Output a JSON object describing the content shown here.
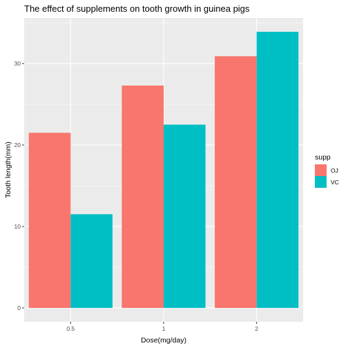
{
  "chart_data": {
    "type": "bar",
    "title": "The effect of supplements on tooth growth in guinea pigs",
    "xlabel": "Dose(mg/day)",
    "ylabel": "Tooth length(mm)",
    "categories": [
      "0.5",
      "1",
      "2"
    ],
    "series": [
      {
        "name": "OJ",
        "values": [
          21.5,
          27.3,
          30.9
        ],
        "color": "#F8766D"
      },
      {
        "name": "VC",
        "values": [
          11.5,
          22.5,
          33.9
        ],
        "color": "#00BFC4"
      }
    ],
    "ylim": [
      -1.7,
      35.6
    ],
    "yticks": [
      0,
      10,
      20,
      30
    ],
    "grid": true,
    "panel_background": "#EBEBEB",
    "legend": {
      "title": "supp",
      "position": "right"
    }
  }
}
